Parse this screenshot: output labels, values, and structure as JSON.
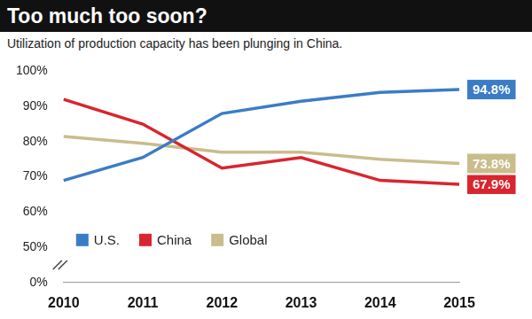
{
  "chart_data": {
    "type": "line",
    "title": "Too much too soon?",
    "subtitle": "Utilization of production capacity has been plunging in China.",
    "categories": [
      "2010",
      "2011",
      "2012",
      "2013",
      "2014",
      "2015"
    ],
    "series": [
      {
        "name": "U.S.",
        "color": "#3b7cc6",
        "values": [
          69,
          75.5,
          88,
          91.5,
          94,
          94.8
        ],
        "value_labels": [
          null,
          null,
          null,
          null,
          null,
          "94.8%"
        ]
      },
      {
        "name": "China",
        "color": "#d9252e",
        "values": [
          92,
          85,
          72.5,
          75.5,
          69,
          67.9
        ],
        "value_labels": [
          null,
          null,
          null,
          null,
          null,
          "67.9%"
        ]
      },
      {
        "name": "Global",
        "color": "#c9bd8c",
        "values": [
          81.5,
          79.5,
          77,
          77,
          75,
          73.8
        ],
        "value_labels": [
          null,
          null,
          null,
          null,
          null,
          "73.8%"
        ]
      }
    ],
    "ylim": [
      0,
      100
    ],
    "yticks": [
      {
        "value": 0,
        "label": "0%"
      },
      {
        "value": 50,
        "label": "50%"
      },
      {
        "value": 60,
        "label": "60%"
      },
      {
        "value": 70,
        "label": "70%"
      },
      {
        "value": 80,
        "label": "80%"
      },
      {
        "value": 90,
        "label": "90%"
      },
      {
        "value": 100,
        "label": "100%"
      }
    ],
    "grid": false,
    "legend": "lower left",
    "data_labels": true
  }
}
